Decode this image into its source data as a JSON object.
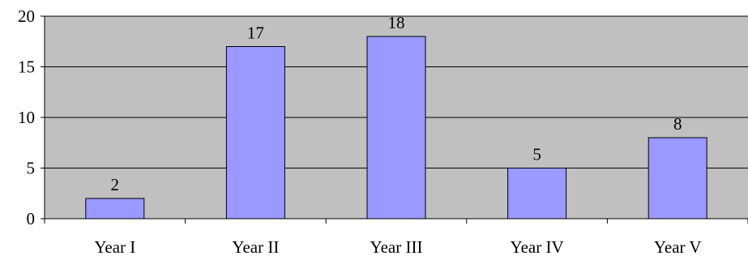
{
  "chart_data": {
    "type": "bar",
    "categories": [
      "Year I",
      "Year II",
      "Year III",
      "Year IV",
      "Year V"
    ],
    "values": [
      2,
      17,
      18,
      5,
      8
    ],
    "data_labels": [
      "2",
      "17",
      "18",
      "5",
      "8"
    ],
    "ylim": [
      0,
      20
    ],
    "yticks": [
      0,
      5,
      10,
      15,
      20
    ],
    "ytick_labels": [
      "0",
      "5",
      "10",
      "15",
      "20"
    ],
    "grid": true,
    "colors": {
      "bar_fill": "#9999FF",
      "bar_stroke": "#000000",
      "plot_background": "#C0C0C0",
      "gridline": "#000000"
    }
  }
}
